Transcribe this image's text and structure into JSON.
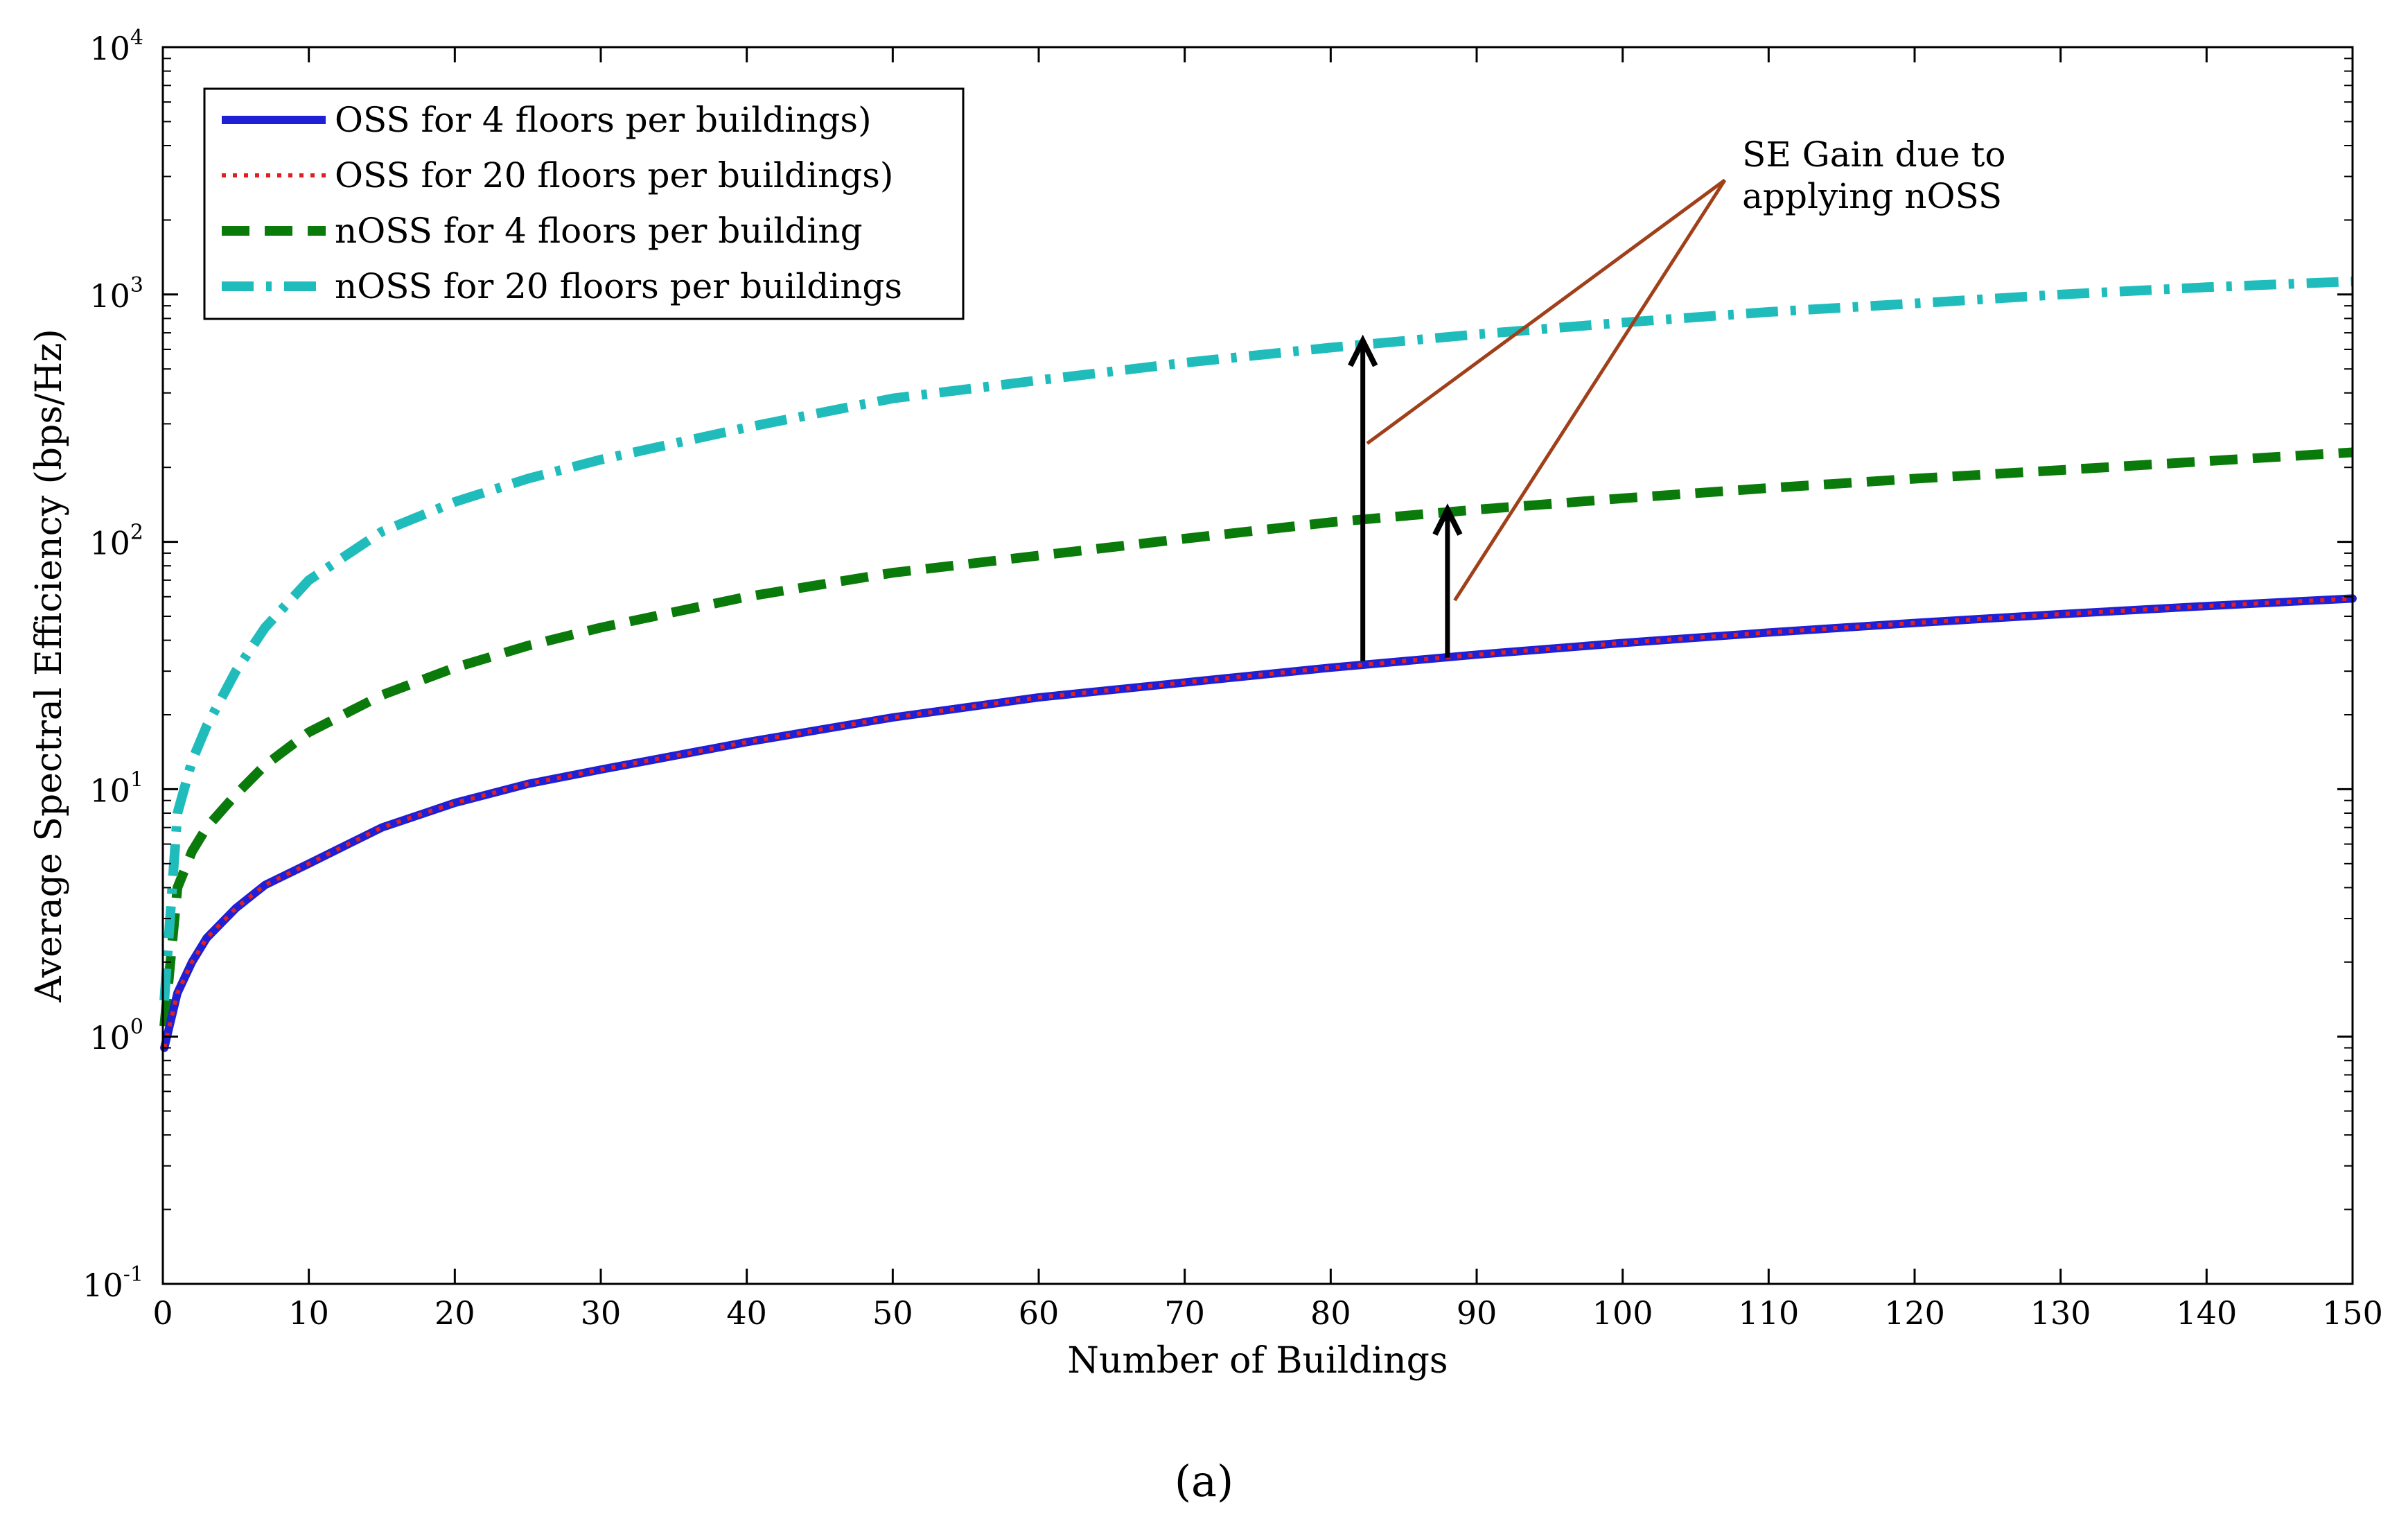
{
  "chart_data": {
    "type": "line",
    "title": "",
    "xlabel": "Number of Buildings",
    "ylabel": "Average Spectral Efficiency (bps/Hz)",
    "xlim": [
      0,
      150
    ],
    "ylim": [
      0.1,
      10000
    ],
    "yscale": "log",
    "grid": false,
    "legend_position": "top-left",
    "x_ticks": [
      0,
      10,
      20,
      30,
      40,
      50,
      60,
      70,
      80,
      90,
      100,
      110,
      120,
      130,
      140,
      150
    ],
    "x_tick_labels": [
      "0",
      "10",
      "20",
      "30",
      "40",
      "50",
      "60",
      "70",
      "80",
      "90",
      "100",
      "110",
      "120",
      "130",
      "140",
      "150"
    ],
    "y_ticks": [
      0.1,
      1,
      10,
      100,
      1000,
      10000
    ],
    "y_tick_labels": [
      {
        "base": "10",
        "exp": "-1"
      },
      {
        "base": "10",
        "exp": "0"
      },
      {
        "base": "10",
        "exp": "1"
      },
      {
        "base": "10",
        "exp": "2"
      },
      {
        "base": "10",
        "exp": "3"
      },
      {
        "base": "10",
        "exp": "4"
      }
    ],
    "x": [
      0.1,
      1,
      2,
      3,
      5,
      7,
      10,
      15,
      20,
      25,
      30,
      40,
      50,
      60,
      70,
      80,
      90,
      100,
      110,
      120,
      130,
      140,
      150
    ],
    "series": [
      {
        "name": "OSS for 4 floors per buildings)",
        "color": "#1f1fd6",
        "style": "solid",
        "values": [
          0.9,
          1.5,
          2.0,
          2.5,
          3.3,
          4.1,
          5.0,
          7.0,
          8.8,
          10.5,
          12.0,
          15.5,
          19.5,
          23.5,
          27.0,
          31.0,
          35.0,
          39.0,
          43.0,
          47.0,
          51.0,
          55.0,
          59.0
        ]
      },
      {
        "name": "OSS for 20 floors per buildings)",
        "color": "#e02020",
        "style": "dotted",
        "values": [
          0.9,
          1.5,
          2.0,
          2.5,
          3.3,
          4.1,
          5.0,
          7.0,
          8.8,
          10.5,
          12.0,
          15.5,
          19.5,
          23.5,
          27.0,
          31.0,
          35.0,
          39.0,
          43.0,
          47.0,
          51.0,
          55.0,
          59.0
        ]
      },
      {
        "name": "nOSS for 4 floors per building",
        "color": "#0a7a0a",
        "style": "dashed",
        "values": [
          1.1,
          4.0,
          5.6,
          7.0,
          9.5,
          12.5,
          17.0,
          24.0,
          31.0,
          38.0,
          45.0,
          60.0,
          75.0,
          88.0,
          103.0,
          120.0,
          135.0,
          150.0,
          165.0,
          180.0,
          195.0,
          212.0,
          230.0
        ]
      },
      {
        "name": "nOSS for 20 floors per buildings",
        "color": "#20bcbc",
        "style": "dashdot",
        "values": [
          1.4,
          8.0,
          13.0,
          18.0,
          30.0,
          45.0,
          70.0,
          110.0,
          145.0,
          180.0,
          215.0,
          290.0,
          380.0,
          450.0,
          530.0,
          610.0,
          690.0,
          770.0,
          850.0,
          920.0,
          1000.0,
          1070.0,
          1130.0
        ]
      }
    ],
    "annotation": {
      "lines": [
        "SE Gain due to",
        "applying nOSS"
      ],
      "color": "#a0401a",
      "pointer_targets": [
        {
          "x": 82.5,
          "y": 250
        },
        {
          "x": 88.5,
          "y": 58
        }
      ],
      "label_anchor": {
        "x": 107,
        "y": 2900
      }
    },
    "arrows": [
      {
        "x": 82.2,
        "y_from": 33,
        "y_to": 650
      },
      {
        "x": 88,
        "y_from": 34,
        "y_to": 135
      }
    ]
  },
  "caption": "(a)"
}
